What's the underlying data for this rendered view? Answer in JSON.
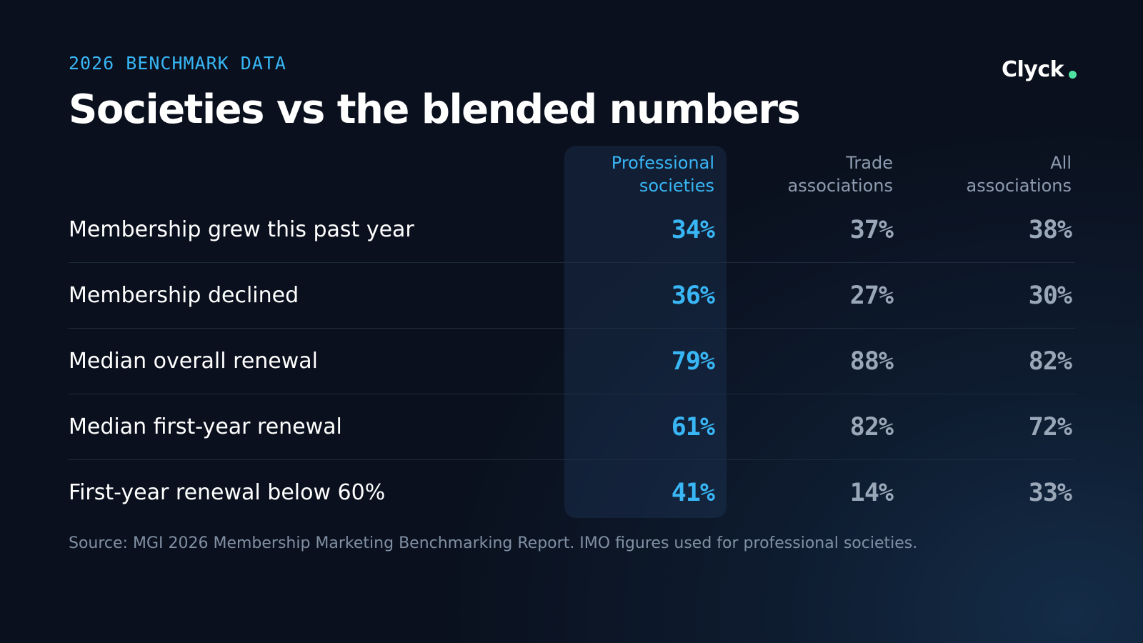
{
  "header": {
    "eyebrow": "2026 BENCHMARK DATA",
    "title": "Societies vs the blended numbers",
    "logo_text": "Clyck"
  },
  "colors": {
    "accent": "#38b6f5",
    "logo_dot": "#4ee3a0",
    "muted": "#9aa7b8",
    "background": "#0a101d"
  },
  "chart_data": {
    "type": "table",
    "columns": [
      {
        "lines": [
          "Professional",
          "societies"
        ],
        "highlight": true
      },
      {
        "lines": [
          "Trade",
          "associations"
        ],
        "highlight": false
      },
      {
        "lines": [
          "All",
          "associations"
        ],
        "highlight": false
      }
    ],
    "rows": [
      {
        "label": "Membership grew this past year",
        "values": [
          "34%",
          "37%",
          "38%"
        ]
      },
      {
        "label": "Membership declined",
        "values": [
          "36%",
          "27%",
          "30%"
        ]
      },
      {
        "label": "Median overall renewal",
        "values": [
          "79%",
          "88%",
          "82%"
        ]
      },
      {
        "label": "Median first-year renewal",
        "values": [
          "61%",
          "82%",
          "72%"
        ]
      },
      {
        "label": "First-year renewal below 60%",
        "values": [
          "41%",
          "14%",
          "33%"
        ]
      }
    ]
  },
  "footer": {
    "source": "Source: MGI 2026 Membership Marketing Benchmarking Report. IMO figures used for professional societies."
  }
}
